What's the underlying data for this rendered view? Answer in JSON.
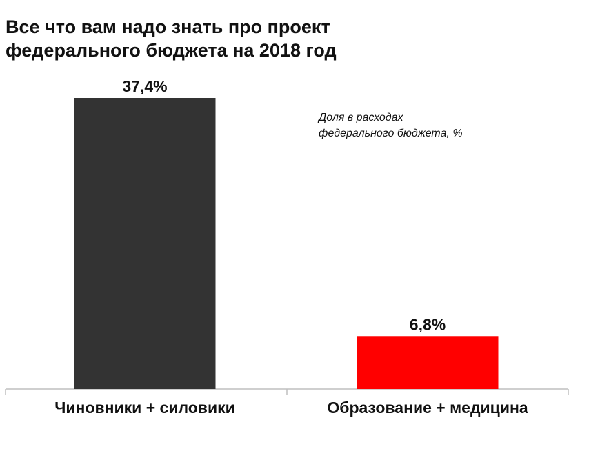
{
  "title": {
    "line1": "Все что вам надо знать про проект",
    "line2": "федерального бюджета на 2018 год"
  },
  "note": {
    "line1": "Доля в расходах",
    "line2": "федерального бюджета, %"
  },
  "colors": {
    "bar_officials": "#333333",
    "bar_education": "#ff0000",
    "axis": "#bfbfbf"
  },
  "chart_data": {
    "type": "bar",
    "title": "Все что вам надо знать про проект федерального бюджета на 2018 год",
    "ylabel": "",
    "xlabel": "",
    "categories": [
      "Чиновники + силовики",
      "Образование + медицина"
    ],
    "values": [
      37.4,
      6.8
    ],
    "value_labels": [
      "37,4%",
      "6,8%"
    ],
    "ylim": [
      0,
      37.4
    ],
    "grid": false,
    "legend": "none",
    "annotation": "Доля в расходах федерального бюджета, %"
  }
}
